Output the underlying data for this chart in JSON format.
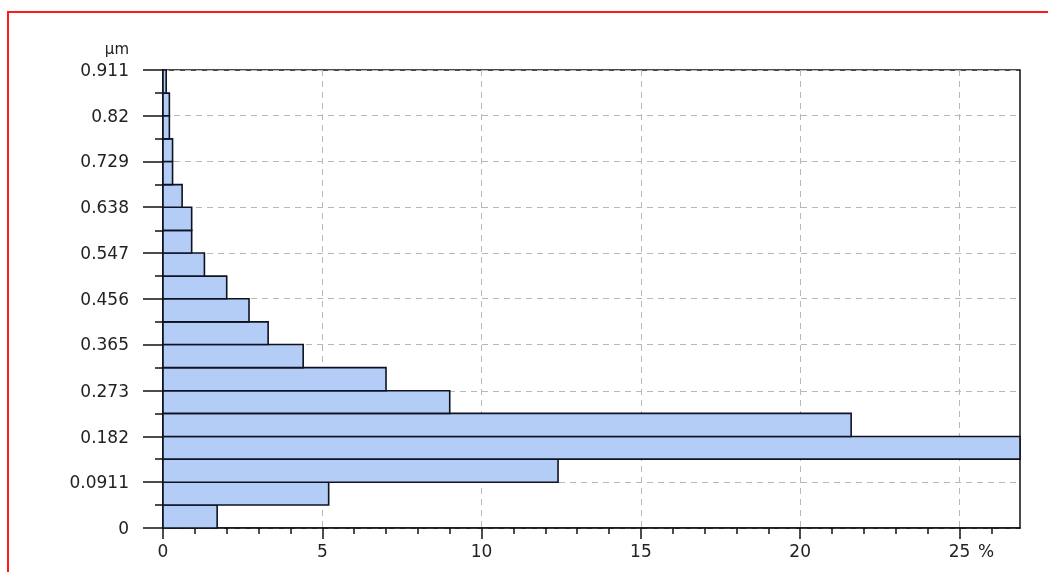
{
  "chart_data": {
    "type": "histogram",
    "orientation": "horizontal",
    "ylabel": "µm",
    "xlabel": "%",
    "bins": [
      0,
      0.0456,
      0.0911,
      0.137,
      0.182,
      0.228,
      0.273,
      0.319,
      0.365,
      0.41,
      0.456,
      0.501,
      0.547,
      0.592,
      0.638,
      0.683,
      0.729,
      0.774,
      0.82,
      0.865,
      0.911
    ],
    "values": [
      1.7,
      5.2,
      12.4,
      26.9,
      21.6,
      9.0,
      7.0,
      4.4,
      3.3,
      2.7,
      2.0,
      1.3,
      0.9,
      0.9,
      0.6,
      0.3,
      0.3,
      0.2,
      0.2,
      0.1
    ],
    "color": "#b4cdf6",
    "xlim": [
      0,
      26.9
    ],
    "ylim": [
      0,
      0.911
    ],
    "xticks": [
      0,
      {
        "value": 1,
        "label": null
      },
      {
        "value": 2,
        "label": null
      },
      {
        "value": 3,
        "label": null
      },
      {
        "value": 4,
        "label": null
      },
      5,
      {
        "value": 6,
        "label": null
      },
      {
        "value": 7,
        "label": null
      },
      {
        "value": 8,
        "label": null
      },
      {
        "value": 9,
        "label": null
      },
      10,
      {
        "value": 11,
        "label": null
      },
      {
        "value": 12,
        "label": null
      },
      {
        "value": 13,
        "label": null
      },
      {
        "value": 14,
        "label": null
      },
      15,
      {
        "value": 16,
        "label": null
      },
      {
        "value": 17,
        "label": null
      },
      {
        "value": 18,
        "label": null
      },
      {
        "value": 19,
        "label": null
      },
      20,
      {
        "value": 21,
        "label": null
      },
      {
        "value": 22,
        "label": null
      },
      {
        "value": 23,
        "label": null
      },
      {
        "value": 24,
        "label": null
      },
      25,
      {
        "value": 26,
        "label": null
      }
    ],
    "yticks": [
      0,
      {
        "value": 0.0456,
        "label": null
      },
      0.0911,
      {
        "value": 0.137,
        "label": null
      },
      0.182,
      {
        "value": 0.228,
        "label": null
      },
      0.273,
      {
        "value": 0.319,
        "label": null
      },
      0.365,
      {
        "value": 0.41,
        "label": null
      },
      0.456,
      {
        "value": 0.501,
        "label": null
      },
      0.547,
      {
        "value": 0.592,
        "label": null
      },
      0.638,
      {
        "value": 0.683,
        "label": null
      },
      0.729,
      {
        "value": 0.774,
        "label": null
      },
      0.82,
      {
        "value": 0.865,
        "label": null
      },
      0.911
    ],
    "grid": true
  }
}
